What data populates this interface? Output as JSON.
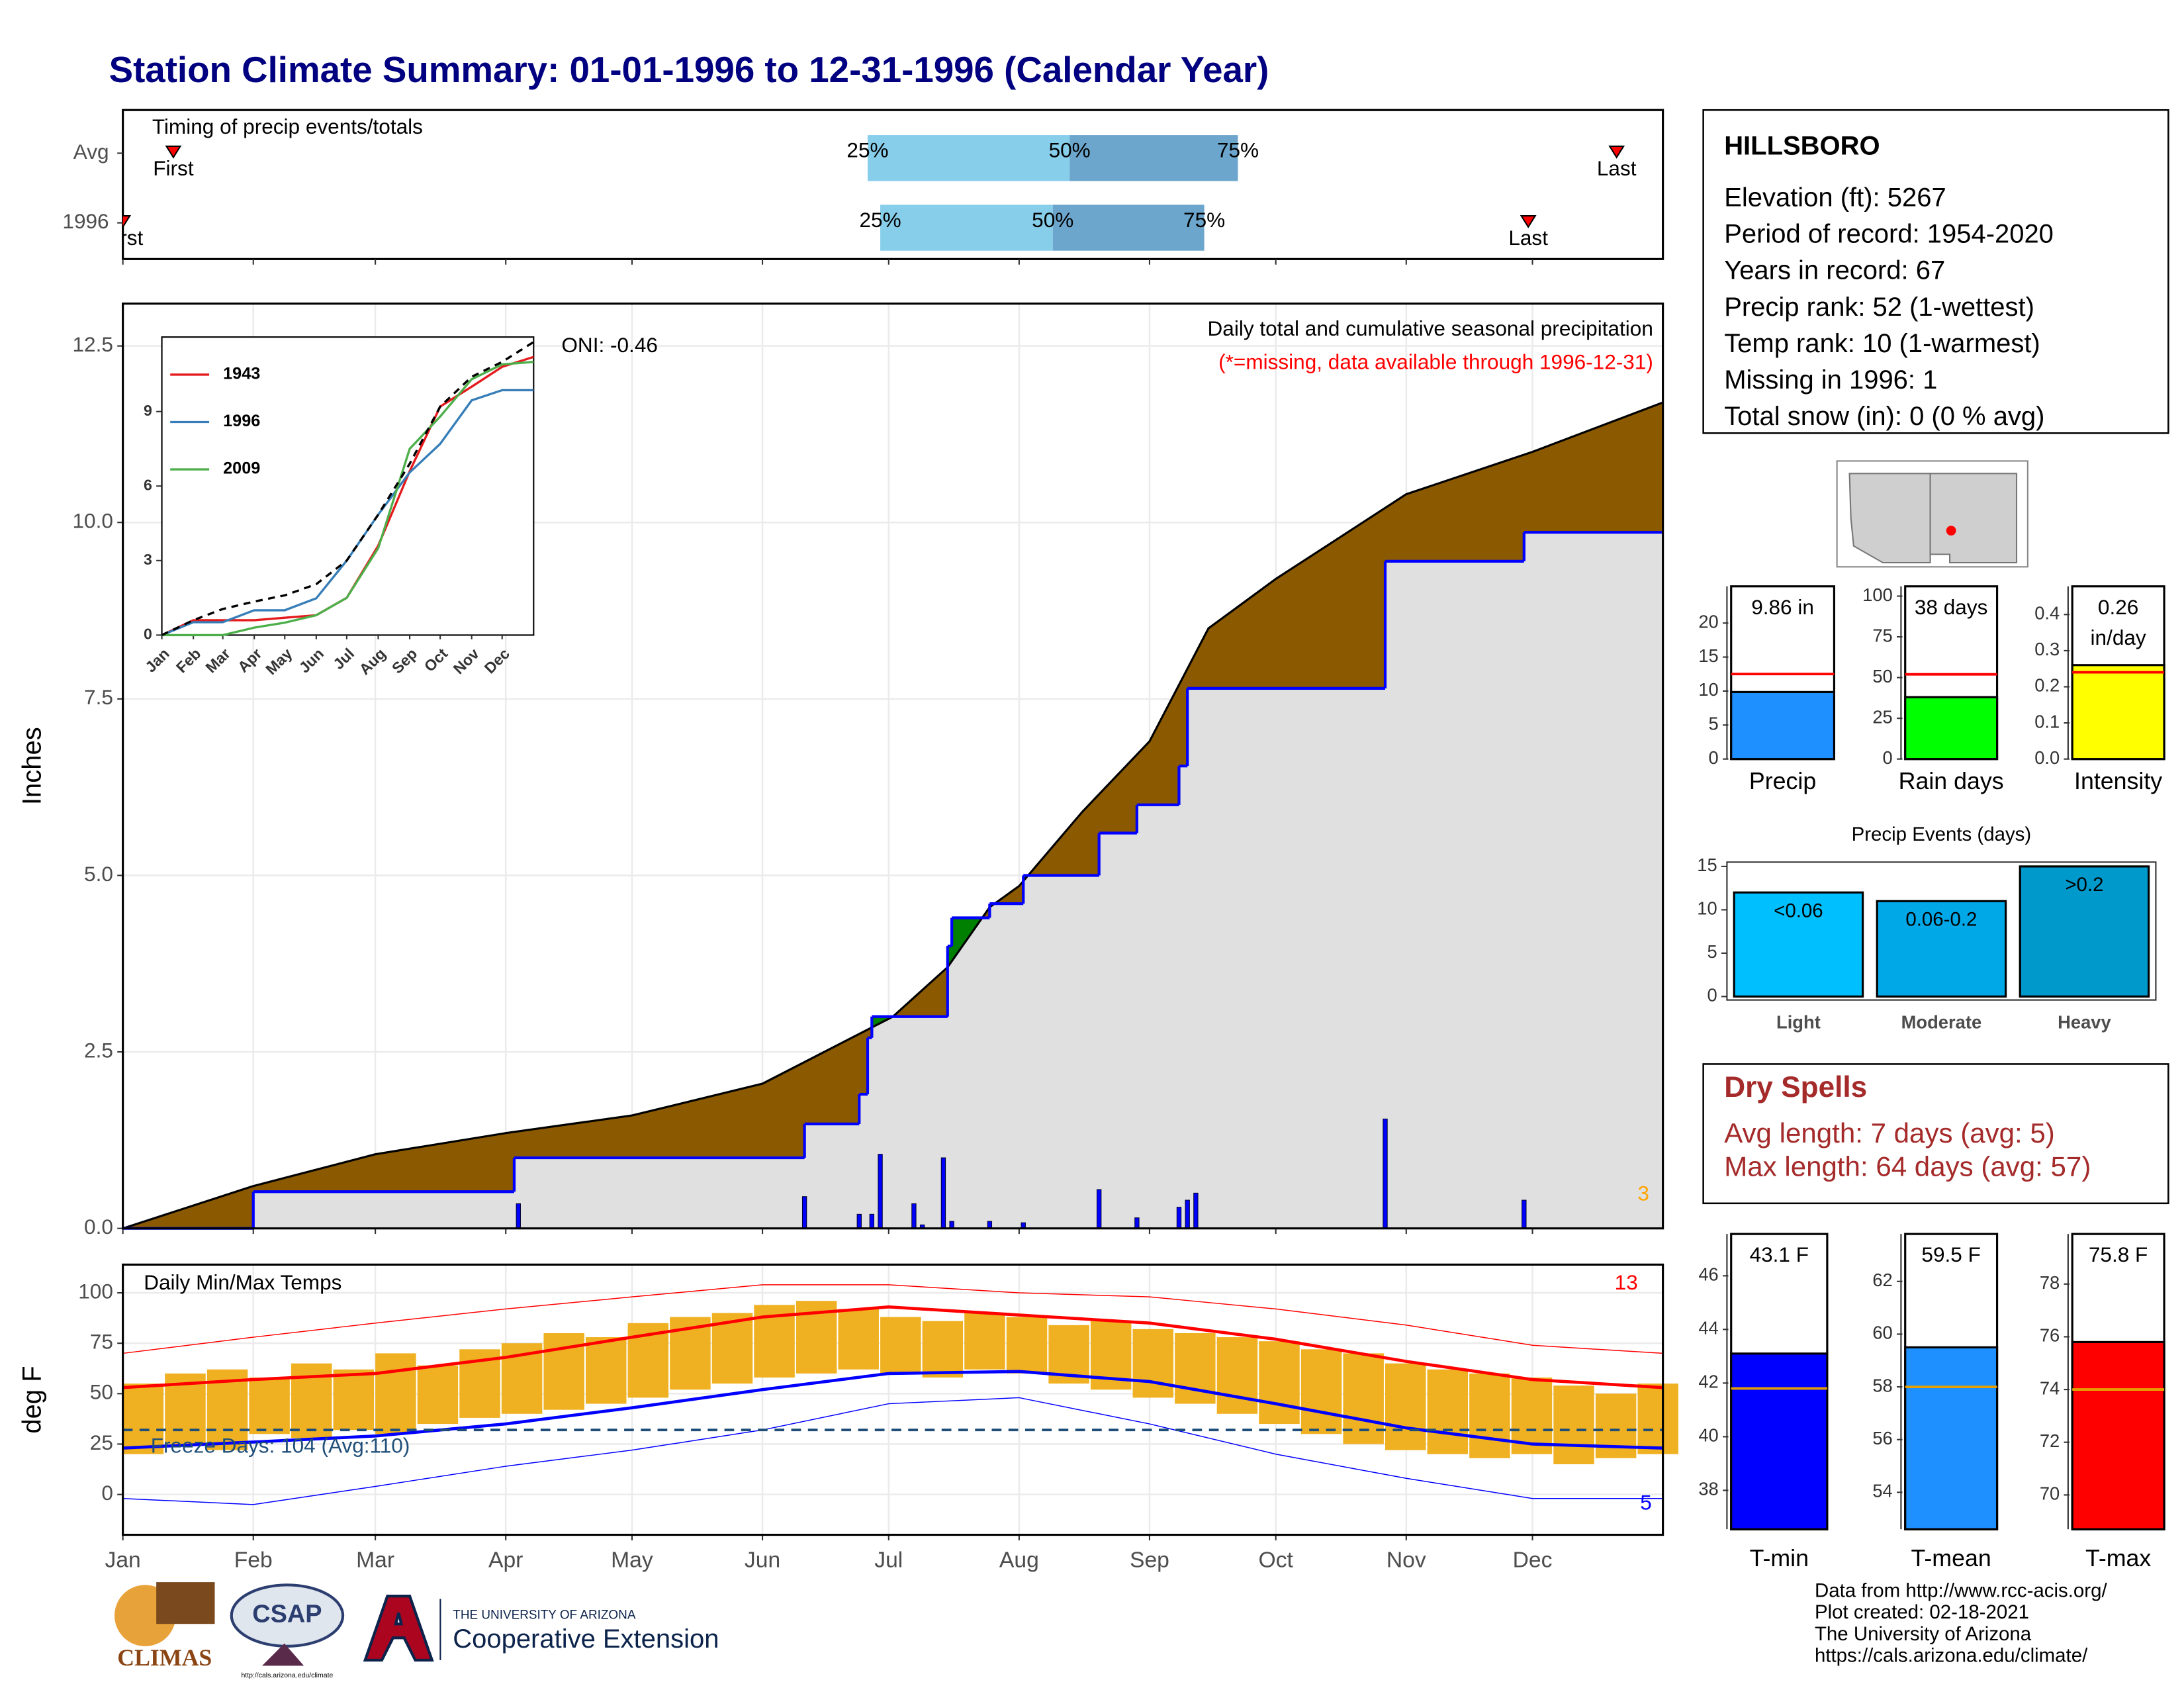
{
  "title": "Station Climate Summary: 01-01-1996 to 12-31-1996 (Calendar Year)",
  "station": {
    "name": "HILLSBORO",
    "lines": [
      "Elevation (ft): 5267",
      "Period of record: 1954-2020",
      "Years in record: 67",
      "Precip rank: 52 (1-wettest)",
      "Temp rank: 10 (1-warmest)",
      "Missing in 1996: 1",
      "Total snow (in): 0 (0 % avg)"
    ]
  },
  "dry_spells": {
    "title": "Dry Spells",
    "lines": [
      "Avg length: 7 days (avg: 5)",
      "Max length: 64 days (avg: 57)"
    ],
    "color": "#a52a2a"
  },
  "footer": [
    "Data from http://www.rcc-acis.org/",
    "Plot created: 02-18-2021",
    "The University of Arizona",
    "https://cals.arizona.edu/climate/"
  ],
  "logos": {
    "climas": "CLIMAS",
    "csap": "CSAP",
    "csap_url": "http://cals.arizona.edu/climate",
    "university": "THE UNIVERSITY OF ARIZONA",
    "extension": "Cooperative Extension"
  },
  "chart_data": [
    {
      "type": "timing",
      "title": "Timing of precip events/totals",
      "xlim": [
        0,
        366
      ],
      "rows": [
        {
          "name": "Avg",
          "first": 12,
          "q25": 177,
          "q50": 225,
          "q75": 265,
          "last": 355
        },
        {
          "name": "1996",
          "first": 0,
          "q25": 180,
          "q50": 221,
          "q75": 257,
          "last": 334
        }
      ],
      "labels": {
        "first": "First",
        "last": "Last",
        "q25": "25%",
        "q50": "50%",
        "q75": "75%"
      },
      "colors": [
        "#87ceeb",
        "#6ca6cd"
      ],
      "marker_color": "#ff0000"
    },
    {
      "type": "area",
      "ylabel": "Inches",
      "title": "Daily total and cumulative seasonal precipitation",
      "subtitle": "(*=missing, data available through 1996-12-31)",
      "oni": "ONI: -0.46",
      "count": 3,
      "xlim": [
        0,
        366
      ],
      "xticks": [
        0,
        31,
        60,
        91,
        121,
        152,
        182,
        213,
        244,
        274,
        305,
        335
      ],
      "ylim": [
        0,
        13.1
      ],
      "yticks": [
        {
          "value": 0,
          "label": "0.0"
        },
        {
          "value": 2.5,
          "label": "2.5"
        },
        {
          "value": 5,
          "label": "5.0"
        },
        {
          "value": 7.5,
          "label": "7.5"
        },
        {
          "value": 10,
          "label": "10.0"
        },
        {
          "value": 12.5,
          "label": "12.5"
        }
      ],
      "grid": true,
      "average": {
        "x": [
          0,
          31,
          60,
          91,
          121,
          152,
          183,
          196,
          206,
          213,
          228,
          244,
          258,
          274,
          305,
          335,
          366
        ],
        "values": [
          0,
          0.6,
          1.05,
          1.35,
          1.6,
          2.05,
          3.0,
          3.7,
          4.55,
          4.85,
          5.9,
          6.9,
          8.5,
          9.2,
          10.4,
          11.0,
          11.7
        ],
        "color": "#8b5a00"
      },
      "observed": {
        "x": [
          0,
          31,
          93,
          162,
          175,
          177,
          178,
          196,
          197,
          206,
          214,
          232,
          241,
          251,
          253,
          300,
          333,
          366
        ],
        "values": [
          0,
          0.52,
          1.0,
          1.48,
          1.9,
          2.7,
          3.0,
          4.0,
          4.4,
          4.6,
          5.0,
          5.6,
          6.0,
          6.55,
          7.65,
          9.45,
          9.86,
          9.86
        ],
        "color": "#0000ff",
        "fill": "#e0e0e0",
        "above_color": "#008000"
      },
      "daily": {
        "x": [
          94,
          162,
          175,
          178,
          180,
          188,
          190,
          195,
          197,
          206,
          214,
          232,
          241,
          251,
          253,
          255,
          300,
          333
        ],
        "values": [
          0.35,
          0.45,
          0.2,
          0.2,
          1.05,
          0.35,
          0.05,
          1.0,
          0.1,
          0.1,
          0.08,
          0.55,
          0.15,
          0.3,
          0.4,
          0.5,
          1.55,
          0.4
        ],
        "color": "#0000ff"
      }
    },
    {
      "type": "line",
      "categories": [
        "Jan",
        "Feb",
        "Mar",
        "Apr",
        "May",
        "Jun",
        "Jul",
        "Aug",
        "Sep",
        "Oct",
        "Nov",
        "Dec"
      ],
      "xticks": [
        0,
        31,
        60,
        91,
        121,
        152,
        182,
        213,
        244,
        274,
        305,
        335
      ],
      "xlim": [
        0,
        366
      ],
      "ylim": [
        0,
        12
      ],
      "yticks": [
        0,
        3,
        6,
        9
      ],
      "x": [
        0,
        31,
        60,
        91,
        121,
        152,
        182,
        213,
        244,
        274,
        305,
        335,
        366
      ],
      "average": {
        "values": [
          0,
          0.6,
          1.05,
          1.35,
          1.6,
          2.05,
          3.0,
          4.85,
          6.9,
          9.2,
          10.4,
          11.0,
          11.8
        ],
        "color": "#000000"
      },
      "series": [
        {
          "name": "1943",
          "color": "#e41a1c",
          "values": [
            0,
            0.6,
            0.6,
            0.6,
            0.7,
            0.8,
            1.5,
            3.6,
            6.6,
            9.2,
            10.0,
            10.8,
            11.2
          ]
        },
        {
          "name": "1996",
          "color": "#377eb8",
          "values": [
            0,
            0.52,
            0.52,
            1.0,
            1.0,
            1.48,
            3.0,
            4.85,
            6.55,
            7.7,
            9.45,
            9.86,
            9.86
          ]
        },
        {
          "name": "2009",
          "color": "#4daf4a",
          "values": [
            0,
            0,
            0,
            0.3,
            0.5,
            0.8,
            1.5,
            3.5,
            7.5,
            8.8,
            10.3,
            10.9,
            11.0
          ]
        }
      ]
    },
    {
      "type": "range",
      "title": "Daily Min/Max Temps",
      "ylabel": "deg F",
      "categories": [
        "Jan",
        "Feb",
        "Mar",
        "Apr",
        "May",
        "Jun",
        "Jul",
        "Aug",
        "Sep",
        "Oct",
        "Nov",
        "Dec"
      ],
      "xticks": [
        0,
        31,
        60,
        91,
        121,
        152,
        182,
        213,
        244,
        274,
        305,
        335
      ],
      "xlim": [
        0,
        366
      ],
      "ylim": [
        -20,
        114
      ],
      "yticks": [
        0,
        25,
        50,
        75,
        100
      ],
      "grid": true,
      "x": [
        0,
        10,
        20,
        30,
        40,
        50,
        60,
        70,
        80,
        90,
        100,
        110,
        120,
        130,
        140,
        150,
        160,
        170,
        180,
        190,
        200,
        210,
        220,
        230,
        240,
        250,
        260,
        270,
        280,
        290,
        300,
        310,
        320,
        330,
        340,
        350,
        360
      ],
      "max": [
        55,
        60,
        62,
        58,
        65,
        62,
        70,
        64,
        72,
        75,
        80,
        78,
        85,
        88,
        90,
        94,
        96,
        92,
        88,
        86,
        90,
        88,
        84,
        86,
        82,
        80,
        78,
        76,
        72,
        70,
        65,
        62,
        60,
        58,
        54,
        50,
        55
      ],
      "min": [
        20,
        25,
        22,
        30,
        28,
        32,
        30,
        35,
        38,
        40,
        42,
        45,
        48,
        52,
        55,
        58,
        60,
        62,
        60,
        58,
        62,
        60,
        55,
        52,
        48,
        45,
        40,
        35,
        30,
        25,
        22,
        20,
        18,
        20,
        15,
        18,
        20
      ],
      "color": "#efb121",
      "normal": {
        "x": [
          0,
          31,
          60,
          91,
          121,
          152,
          182,
          213,
          244,
          274,
          305,
          335,
          366
        ],
        "max": [
          53,
          57,
          60,
          68,
          78,
          88,
          93,
          89,
          85,
          77,
          66,
          57,
          53
        ],
        "min": [
          23,
          26,
          29,
          35,
          43,
          52,
          60,
          61,
          56,
          45,
          33,
          25,
          23
        ]
      },
      "record": {
        "max": [
          70,
          78,
          85,
          92,
          98,
          104,
          104,
          100,
          98,
          92,
          84,
          74,
          70
        ],
        "min": [
          -2,
          -5,
          4,
          14,
          22,
          32,
          45,
          48,
          35,
          20,
          8,
          -2,
          -2
        ]
      },
      "colors": {
        "max": "#ff0000",
        "min": "#0000ff",
        "freeze": "#1f4e79"
      },
      "freeze": 32,
      "freeze_label": "Freeze Days: 104 (Avg:110)",
      "record_high_count": 13,
      "record_low_count": 5
    },
    {
      "type": "bar",
      "label": "Precip",
      "values": [
        9.86
      ],
      "value_labels": [
        "9.86 in"
      ],
      "avg": 12.5,
      "ylim": [
        0,
        25.4
      ],
      "yticks": [
        0,
        5,
        10,
        15,
        20
      ],
      "color": "#1e90ff",
      "avg_color": "#ff0000"
    },
    {
      "type": "bar",
      "label": "Rain days",
      "values": [
        38
      ],
      "value_labels": [
        "38 days"
      ],
      "avg": 52,
      "ylim": [
        0,
        106
      ],
      "yticks": [
        0,
        25,
        50,
        75,
        100
      ],
      "color": "#00ff00",
      "avg_color": "#ff0000"
    },
    {
      "type": "bar",
      "label": "Intensity",
      "values": [
        0.26
      ],
      "value_labels": [
        "0.26"
      ],
      "unit": "in/day",
      "avg": 0.24,
      "ylim": [
        0,
        0.478
      ],
      "yticks": [
        {
          "value": 0,
          "label": "0.0"
        },
        {
          "value": 0.1,
          "label": "0.1"
        },
        {
          "value": 0.2,
          "label": "0.2"
        },
        {
          "value": 0.3,
          "label": "0.3"
        },
        {
          "value": 0.4,
          "label": "0.4"
        }
      ],
      "color": "#ffff00",
      "avg_color": "#ff0000"
    },
    {
      "type": "bar",
      "title": "Precip Events (days)",
      "categories": [
        "Light",
        "Moderate",
        "Heavy"
      ],
      "values": [
        12,
        11,
        15
      ],
      "bin_labels": [
        "<0.06",
        "0.06-0.2",
        ">0.2"
      ],
      "ylim": [
        -0.4,
        15.5
      ],
      "yticks": [
        0,
        5,
        10,
        15
      ],
      "colors": [
        "#00bfff",
        "#00a8e8",
        "#0099cc"
      ]
    },
    {
      "type": "bar",
      "label": "T-min",
      "values": [
        43.1
      ],
      "value_labels": [
        "43.1 F"
      ],
      "avg": 41.8,
      "ylim": [
        36.55,
        47.56
      ],
      "yticks": [
        38,
        40,
        42,
        44,
        46
      ],
      "color": "#0000ff",
      "avg_color": "#e69f00"
    },
    {
      "type": "bar",
      "label": "T-mean",
      "values": [
        59.5
      ],
      "value_labels": [
        "59.5 F"
      ],
      "avg": 58,
      "ylim": [
        52.6,
        63.8
      ],
      "yticks": [
        54,
        56,
        58,
        60,
        62
      ],
      "color": "#1e90ff",
      "avg_color": "#e69f00"
    },
    {
      "type": "bar",
      "label": "T-max",
      "values": [
        75.8
      ],
      "value_labels": [
        "75.8 F"
      ],
      "avg": 74,
      "ylim": [
        68.7,
        79.9
      ],
      "yticks": [
        70,
        72,
        74,
        76,
        78
      ],
      "color": "#ff0000",
      "avg_color": "#e69f00"
    }
  ]
}
